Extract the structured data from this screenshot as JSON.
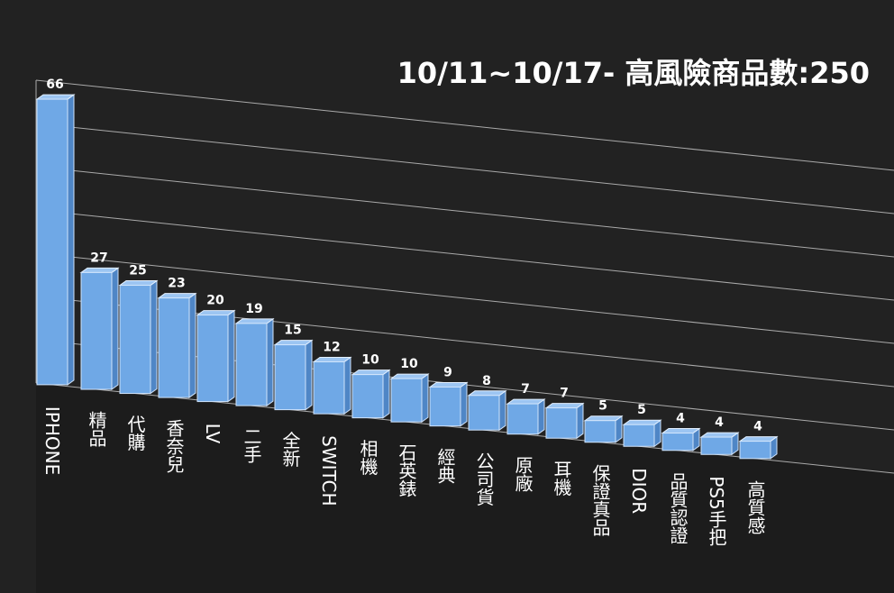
{
  "chart_data": {
    "type": "bar3d",
    "title": "10/11~10/17- 高風險商品數:250",
    "categories": [
      "IPHONE",
      "精品",
      "代購",
      "香奈兒",
      "LV",
      "二手",
      "全新",
      "SWITCH",
      "相機",
      "石英錶",
      "經典",
      "公司貨",
      "原廠",
      "耳機",
      "保證真品",
      "DIOR",
      "品質認證",
      "PS5手把",
      "高質感"
    ],
    "values": [
      66,
      27,
      25,
      23,
      20,
      19,
      15,
      12,
      10,
      10,
      9,
      8,
      7,
      7,
      5,
      5,
      4,
      4,
      4
    ],
    "color": "#6fa8e6",
    "ylim": [
      0,
      70
    ],
    "yticks": [
      0,
      10,
      20,
      30,
      40,
      50,
      60,
      70
    ],
    "grid": true
  }
}
